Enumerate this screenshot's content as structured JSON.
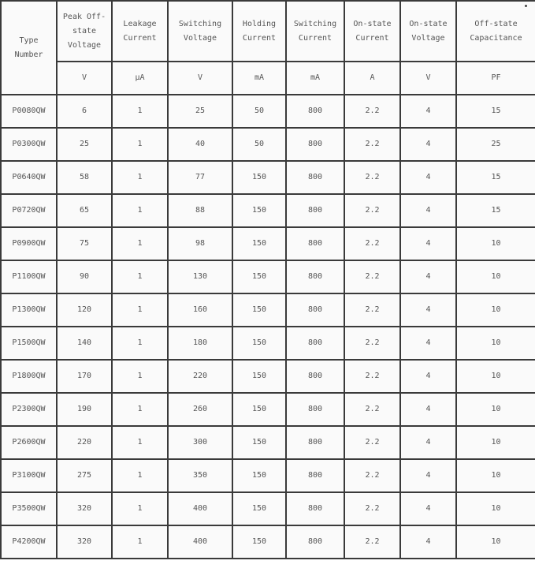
{
  "table": {
    "headers": [
      "Type Number",
      "Peak Off-state Voltage",
      "Leakage Current",
      "Switching Voltage",
      "Holding Current",
      "Switching Current",
      "On-state Current",
      "On-state Voltage",
      "Off-state Capacitance"
    ],
    "units": [
      "V",
      "μA",
      "V",
      "mA",
      "mA",
      "A",
      "V",
      "PF"
    ],
    "rows": [
      [
        "P0080QW",
        "6",
        "1",
        "25",
        "50",
        "800",
        "2.2",
        "4",
        "15"
      ],
      [
        "P0300QW",
        "25",
        "1",
        "40",
        "50",
        "800",
        "2.2",
        "4",
        "25"
      ],
      [
        "P0640QW",
        "58",
        "1",
        "77",
        "150",
        "800",
        "2.2",
        "4",
        "15"
      ],
      [
        "P0720QW",
        "65",
        "1",
        "88",
        "150",
        "800",
        "2.2",
        "4",
        "15"
      ],
      [
        "P0900QW",
        "75",
        "1",
        "98",
        "150",
        "800",
        "2.2",
        "4",
        "10"
      ],
      [
        "P1100QW",
        "90",
        "1",
        "130",
        "150",
        "800",
        "2.2",
        "4",
        "10"
      ],
      [
        "P1300QW",
        "120",
        "1",
        "160",
        "150",
        "800",
        "2.2",
        "4",
        "10"
      ],
      [
        "P1500QW",
        "140",
        "1",
        "180",
        "150",
        "800",
        "2.2",
        "4",
        "10"
      ],
      [
        "P1800QW",
        "170",
        "1",
        "220",
        "150",
        "800",
        "2.2",
        "4",
        "10"
      ],
      [
        "P2300QW",
        "190",
        "1",
        "260",
        "150",
        "800",
        "2.2",
        "4",
        "10"
      ],
      [
        "P2600QW",
        "220",
        "1",
        "300",
        "150",
        "800",
        "2.2",
        "4",
        "10"
      ],
      [
        "P3100QW",
        "275",
        "1",
        "350",
        "150",
        "800",
        "2.2",
        "4",
        "10"
      ],
      [
        "P3500QW",
        "320",
        "1",
        "400",
        "150",
        "800",
        "2.2",
        "4",
        "10"
      ],
      [
        "P4200QW",
        "320",
        "1",
        "400",
        "150",
        "800",
        "2.2",
        "4",
        "10"
      ]
    ]
  }
}
